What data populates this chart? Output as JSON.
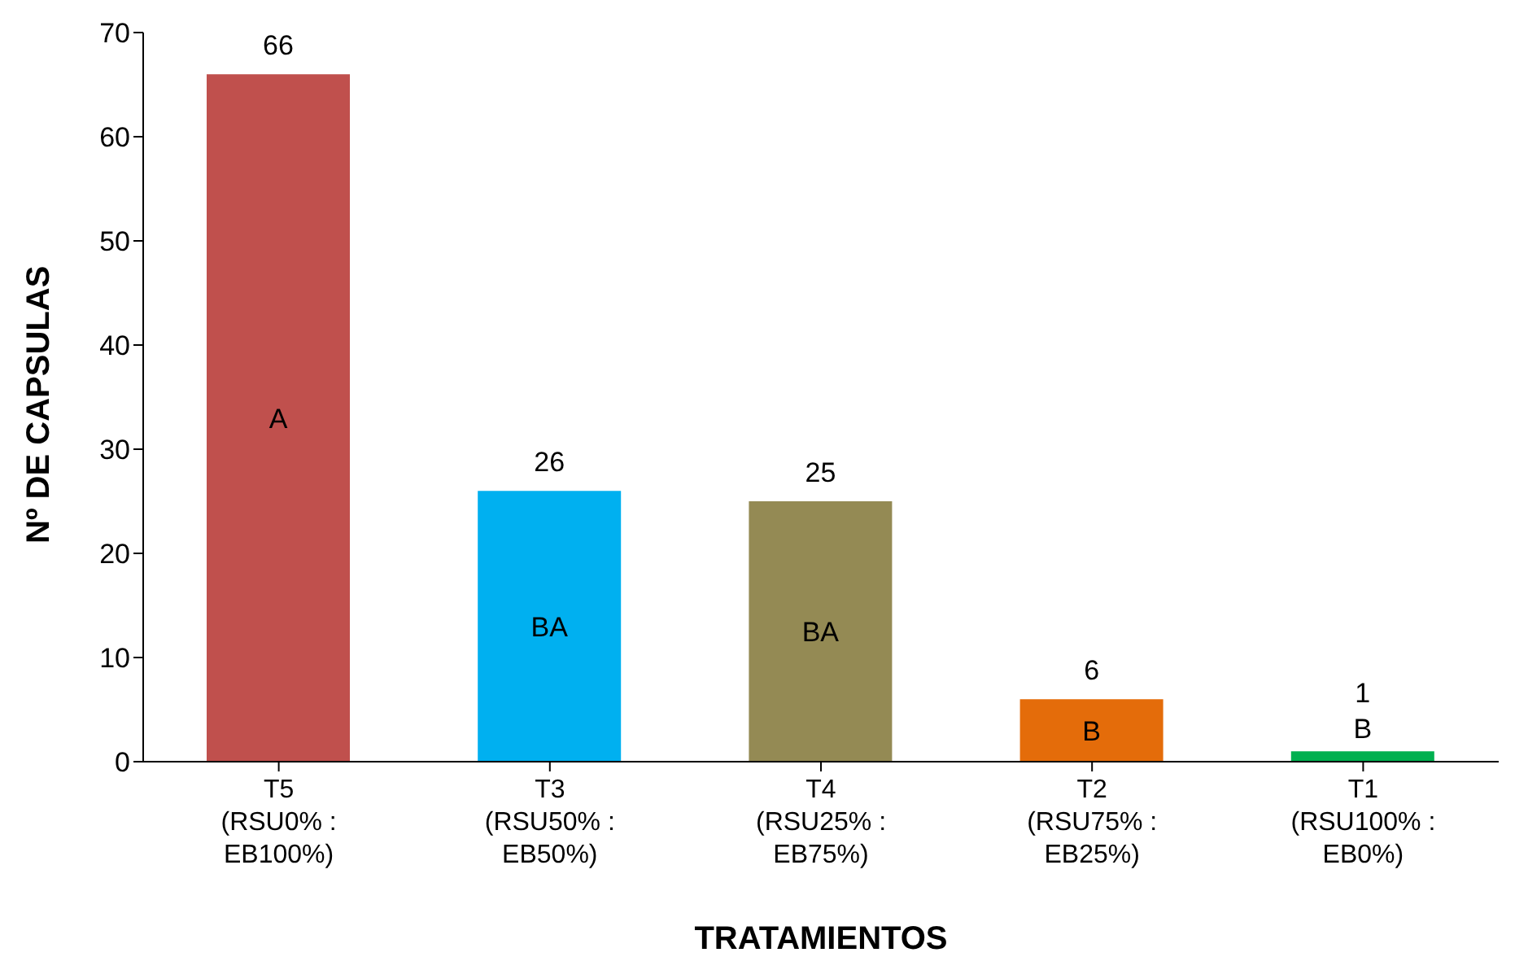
{
  "chart_data": {
    "type": "bar",
    "xlabel": "TRATAMIENTOS",
    "ylabel": "Nº DE CAPSULAS",
    "categories": [
      "T5\n(RSU0% :\nEB100%)",
      "T3\n(RSU50% :\nEB50%)",
      "T4\n(RSU25% :\nEB75%)",
      "T2\n(RSU75% :\nEB25%)",
      "T1\n(RSU100% :\nEB0%)"
    ],
    "values": [
      66,
      26,
      25,
      6,
      1
    ],
    "colors": [
      "#c0504d",
      "#00b0f0",
      "#948a54",
      "#e46c0a",
      "#00b050"
    ],
    "ylim": [
      0,
      70
    ],
    "yticks": [
      0,
      10,
      20,
      30,
      40,
      50,
      60,
      70
    ],
    "grid": false,
    "legend": false,
    "data_labels": true,
    "annotations": [
      "A",
      "BA",
      "BA",
      "B",
      "B"
    ]
  }
}
